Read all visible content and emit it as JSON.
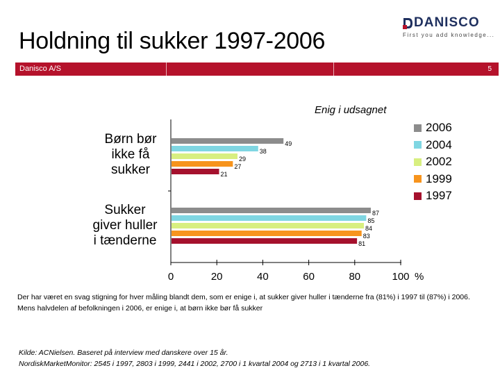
{
  "slide": {
    "title": "Holdning til sukker 1997-2006",
    "company": "Danisco A/S",
    "page_number": "5",
    "logo_text": "DANISCO",
    "logo_tagline": "First you add knowledge...",
    "body_text": "Der har været en svag stigning for hver måling blandt dem, som er enige i, at sukker giver huller i tænderne fra (81%) i 1997 til (87%) i 2006. Mens halvdelen af befolkningen i 2006, er enige i, at børn ikke bør få sukker",
    "source_line1": "Kilde: ACNielsen. Baseret på interview med danskere over 15 år.",
    "source_line2": "NordiskMarketMonitor: 2545 i 1997, 2803 i 1999, 2441 i 2002, 2700 i 1 kvartal 2004 og 2713 i 1 kvartal 2006."
  },
  "chart_data": {
    "type": "bar",
    "orientation": "horizontal",
    "title": "Enig i udsagnet",
    "categories": [
      "Børn bør ikke få sukker",
      "Sukker giver huller i tænderne"
    ],
    "category_lines": [
      [
        "Børn bør",
        "ikke få",
        "sukker"
      ],
      [
        "Sukker",
        "giver huller",
        "i tænderne"
      ]
    ],
    "series": [
      {
        "name": "2006",
        "values": [
          49,
          87
        ],
        "color": "#8c8c8c"
      },
      {
        "name": "2004",
        "values": [
          38,
          85
        ],
        "color": "#7fd6e2"
      },
      {
        "name": "2002",
        "values": [
          29,
          84
        ],
        "color": "#d8ef80"
      },
      {
        "name": "1999",
        "values": [
          27,
          83
        ],
        "color": "#f7941d"
      },
      {
        "name": "1997",
        "values": [
          21,
          81
        ],
        "color": "#a5112d"
      }
    ],
    "xlim": [
      0,
      100
    ],
    "xticks": [
      "0",
      "20",
      "40",
      "60",
      "80",
      "100"
    ],
    "unit": "%",
    "legend_position": "right",
    "grid": false
  }
}
